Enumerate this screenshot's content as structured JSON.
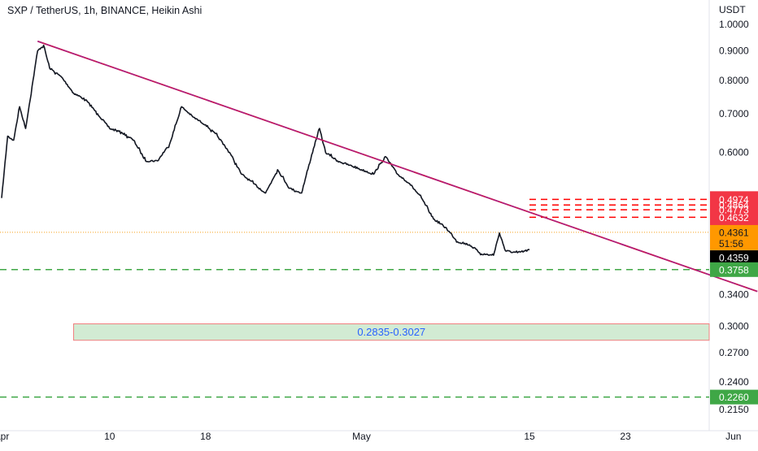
{
  "header": {
    "title": "SXP / TetherUS, 1h, BINANCE, Heikin Ashi"
  },
  "chart_data": {
    "type": "line",
    "title": "SXP / TetherUS, 1h, BINANCE, Heikin Ashi",
    "currency": "USDT",
    "y_scale": "log",
    "ylim": [
      0.2085,
      1.025
    ],
    "xlim": [
      "2021-04-01",
      "2021-06-06"
    ],
    "x_ticks": [
      {
        "label": "Apr",
        "date": "2021-04-01"
      },
      {
        "label": "10",
        "date": "2021-04-10"
      },
      {
        "label": "18",
        "date": "2021-04-18"
      },
      {
        "label": "May",
        "date": "2021-05-01"
      },
      {
        "label": "15",
        "date": "2021-05-15"
      },
      {
        "label": "23",
        "date": "2021-05-23"
      },
      {
        "label": "Jun",
        "date": "2021-06-01"
      }
    ],
    "y_ticks": [
      "1.0000",
      "0.9000",
      "0.8000",
      "0.7000",
      "0.6000",
      "0.3400",
      "0.3000",
      "0.2700",
      "0.2400",
      "0.2150"
    ],
    "series": [
      {
        "color": "#131722",
        "x": [
          "2021-04-01",
          "2021-04-01T12:00",
          "2021-04-02",
          "2021-04-02T12:00",
          "2021-04-03",
          "2021-04-04",
          "2021-04-04T12:00",
          "2021-04-05",
          "2021-04-06",
          "2021-04-07",
          "2021-04-08",
          "2021-04-09",
          "2021-04-10",
          "2021-04-11",
          "2021-04-12",
          "2021-04-13",
          "2021-04-14",
          "2021-04-15",
          "2021-04-16",
          "2021-04-17",
          "2021-04-18",
          "2021-04-19",
          "2021-04-20",
          "2021-04-21",
          "2021-04-22",
          "2021-04-23",
          "2021-04-24",
          "2021-04-25",
          "2021-04-26",
          "2021-04-27",
          "2021-04-27T12:00",
          "2021-04-28",
          "2021-04-29",
          "2021-04-30",
          "2021-05-01",
          "2021-05-02",
          "2021-05-03",
          "2021-05-04",
          "2021-05-05",
          "2021-05-06",
          "2021-05-07",
          "2021-05-08",
          "2021-05-09",
          "2021-05-10",
          "2021-05-11",
          "2021-05-12",
          "2021-05-12T12:00",
          "2021-05-13",
          "2021-05-14",
          "2021-05-15"
        ],
        "y": [
          0.5,
          0.64,
          0.63,
          0.72,
          0.66,
          0.9,
          0.92,
          0.84,
          0.81,
          0.76,
          0.74,
          0.7,
          0.66,
          0.65,
          0.63,
          0.58,
          0.58,
          0.62,
          0.72,
          0.69,
          0.67,
          0.64,
          0.6,
          0.55,
          0.53,
          0.51,
          0.56,
          0.52,
          0.51,
          0.61,
          0.66,
          0.6,
          0.58,
          0.57,
          0.56,
          0.55,
          0.59,
          0.55,
          0.53,
          0.5,
          0.46,
          0.445,
          0.42,
          0.415,
          0.4,
          0.398,
          0.435,
          0.405,
          0.402,
          0.4065
        ]
      }
    ],
    "trendline": {
      "start": [
        "2021-04-04",
        0.935
      ],
      "end": [
        "2021-06-03",
        0.3445
      ],
      "color": "#c2185b"
    },
    "resistance_levels": {
      "values": [
        0.4974,
        0.4864,
        0.4773,
        0.4632
      ],
      "from": "2021-05-15",
      "to": "2021-06-06",
      "color": "#ff0000"
    },
    "support_levels": [
      {
        "value": 0.3758,
        "label": "0.3758",
        "color": "#3fa746"
      },
      {
        "value": 0.226,
        "label": "0.2260",
        "color": "#3fa746"
      }
    ],
    "zone": {
      "low": 0.2835,
      "high": 0.3027,
      "label": "0.2835-0.3027",
      "from": "2021-04-07",
      "to": "2021-06-06"
    },
    "last_price": {
      "value": 0.4361,
      "label": "0.4361",
      "countdown": "51:56"
    },
    "prev_close": {
      "value": 0.4359,
      "label": "0.4359"
    },
    "price_tags": [
      {
        "value": 0.4974,
        "label": "0.4974"
      },
      {
        "value": 0.4864,
        "label": "0.4864"
      },
      {
        "value": 0.4773,
        "label": "0.4773"
      },
      {
        "value": 0.4632,
        "label": "0.4632"
      }
    ]
  }
}
